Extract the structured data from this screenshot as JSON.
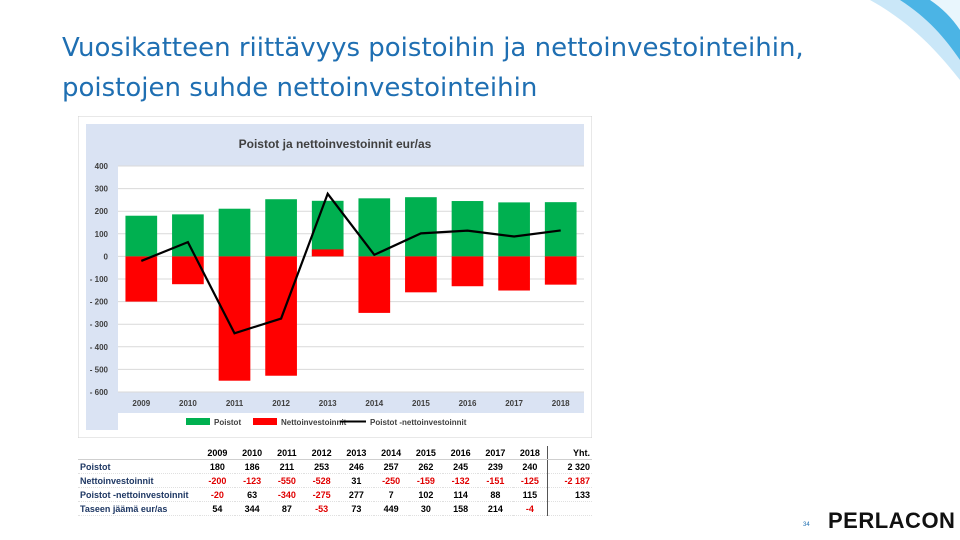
{
  "slide": {
    "title": "Vuosikatteen riittävyys poistoihin ja nettoinvestointeihin, poistojen suhde nettoinvestointeihin",
    "page_number": "34",
    "logo": "PERLACON",
    "accent": "#1f6fb2"
  },
  "chart_data": {
    "type": "bar",
    "title": "Poistot ja nettoinvestoinnit eur/as",
    "categories": [
      "2009",
      "2010",
      "2011",
      "2012",
      "2013",
      "2014",
      "2015",
      "2016",
      "2017",
      "2018"
    ],
    "ylim": [
      -600,
      400
    ],
    "yticks": [
      "400",
      "300",
      "200",
      "100",
      "0",
      "- 100",
      "- 200",
      "- 300",
      "- 400",
      "- 500",
      "- 600"
    ],
    "series": [
      {
        "name": "Poistot",
        "kind": "bar",
        "color": "#00b050",
        "values": [
          180,
          186,
          211,
          253,
          246,
          257,
          262,
          245,
          239,
          240
        ]
      },
      {
        "name": "Nettoinvestoinnit",
        "kind": "bar",
        "color": "#ff0000",
        "values": [
          -200,
          -123,
          -550,
          -528,
          31,
          -250,
          -159,
          -132,
          -151,
          -125
        ]
      },
      {
        "name": "Poistot -nettoinvestoinnit",
        "kind": "line",
        "color": "#000000",
        "values": [
          -20,
          63,
          -340,
          -275,
          277,
          7,
          102,
          114,
          88,
          115
        ]
      }
    ],
    "grid": true,
    "legend": "bottom"
  },
  "table": {
    "headers": [
      "2009",
      "2010",
      "2011",
      "2012",
      "2013",
      "2014",
      "2015",
      "2016",
      "2017",
      "2018",
      "Yht."
    ],
    "rows": [
      {
        "label": "Poistot",
        "cells": [
          "180",
          "186",
          "211",
          "253",
          "246",
          "257",
          "262",
          "245",
          "239",
          "240",
          "2 320"
        ]
      },
      {
        "label": "Nettoinvestoinnit",
        "cells": [
          "-200",
          "-123",
          "-550",
          "-528",
          "31",
          "-250",
          "-159",
          "-132",
          "-151",
          "-125",
          "-2 187"
        ]
      },
      {
        "label": "Poistot -nettoinvestoinnit",
        "cells": [
          "-20",
          "63",
          "-340",
          "-275",
          "277",
          "7",
          "102",
          "114",
          "88",
          "115",
          "133"
        ]
      },
      {
        "label": "Taseen jäämä eur/as",
        "cells": [
          "54",
          "344",
          "87",
          "-53",
          "73",
          "449",
          "30",
          "158",
          "214",
          "-4",
          ""
        ]
      }
    ]
  }
}
